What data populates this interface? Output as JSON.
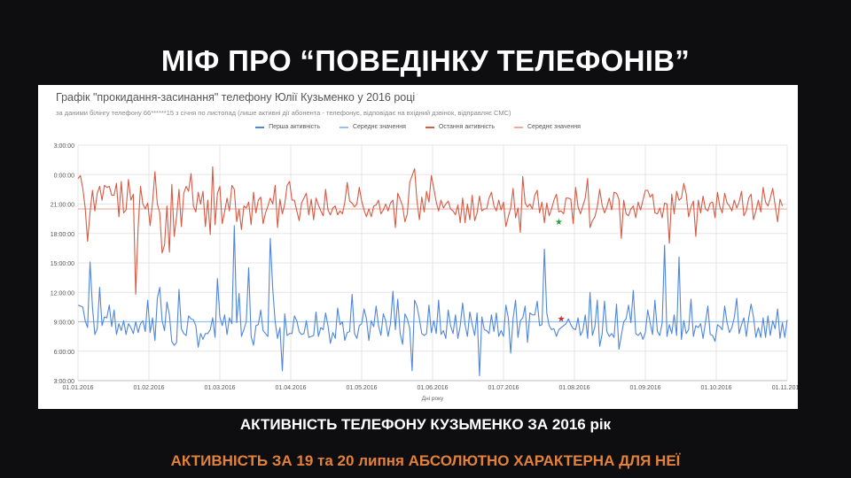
{
  "slide": {
    "title": "МІФ ПРО “ПОВЕДІНКУ ТЕЛЕФОНІВ”",
    "caption_1": "АКТИВНІСТЬ ТЕЛЕФОНУ КУЗЬМЕНКО ЗА 2016 рік",
    "caption_2": "АКТИВНІСТЬ ЗА  19 та 20 липня АБСОЛЮТНО ХАРАКТЕРНА ДЛЯ НЕЇ"
  },
  "colors": {
    "first_activity": "#4f86db",
    "first_average": "#9cc0ee",
    "last_activity": "#d65a44",
    "last_average": "#f0a99c",
    "caption_accent": "#e2813a",
    "marker_green": "#2e9e3e",
    "marker_red": "#c0392b"
  },
  "chart_data": {
    "type": "line",
    "title": "Графік \"прокидання-засинання\" телефону Юлії Кузьменко у 2016 році",
    "subtitle": "за даними білінгу телефону 66******15 з січня по листопад (лише активні дії абонента - телефонує, відповідає на вхідний дзвінок, відправляє СМС)",
    "xlabel": "Дні року",
    "ylabel": "",
    "x_ticks": [
      "01.01.2016",
      "01.02.2016",
      "01.03.2016",
      "01.04.2016",
      "01.05.2016",
      "01.06.2016",
      "01.07.2016",
      "01.08.2016",
      "01.09.2016",
      "01.10.2016",
      "01.11.2016"
    ],
    "y_ticks": [
      "3:00:00",
      "6:00:00",
      "9:00:00",
      "12:00:00",
      "15:00:00",
      "18:00:00",
      "21:00:00",
      "0:00:00",
      "3:00:00"
    ],
    "ylim_hours": [
      3,
      27
    ],
    "grid": true,
    "legend_position": "top",
    "series": [
      {
        "name": "Перша активність",
        "kind": "daily",
        "approx_values_hours": [
          10.7,
          10.6,
          10.5,
          9.1,
          8.4,
          15.1,
          10.5,
          7.7,
          8.3,
          12.5,
          8.6,
          9.5,
          9.4,
          10.7,
          8.5,
          10.2,
          7.7,
          8.8,
          8.1,
          9.1,
          7.7,
          8.8,
          8.4,
          7.8,
          9.0,
          7.9,
          8.8,
          9.1,
          8.0,
          11.2,
          7.9,
          9.4,
          7.1,
          11.4,
          12.5,
          9.1,
          8.1,
          11.0,
          9.7,
          7.0,
          6.6,
          6.9,
          12.3,
          8.3,
          7.8,
          7.6,
          9.6,
          9.3,
          9.2,
          8.6,
          6.4,
          7.8,
          7.2,
          7.8,
          7.8,
          8.2,
          9.4,
          7.4,
          13.4,
          9.5,
          8.6,
          9.7,
          7.7,
          9.4,
          8.8,
          18.8,
          8.9,
          11.9,
          7.5,
          8.2,
          9.0,
          14.5,
          7.5,
          6.6,
          8.6,
          8.7,
          10.2,
          8.1,
          7.8,
          7.5,
          17.5,
          12.3,
          9.0,
          7.3,
          8.4,
          4.0,
          9.8,
          7.6,
          7.8,
          7.8,
          9.6,
          9.1,
          8.0,
          7.7,
          7.8,
          9.1,
          7.4,
          7.5,
          7.6,
          10.0,
          7.5,
          8.4,
          8.2,
          9.9,
          8.6,
          6.8,
          7.9,
          7.3,
          10.4,
          8.7,
          9.0,
          7.1,
          7.9,
          8.0,
          11.8,
          7.8,
          7.3,
          8.6,
          8.8,
          10.3,
          9.3,
          7.1,
          9.1,
          8.5,
          10.6,
          8.6,
          7.6,
          9.8,
          9.1,
          7.5,
          8.8,
          12.1,
          8.2,
          11.3,
          7.8,
          6.7,
          9.8,
          9.3,
          8.3,
          4.0,
          11.2,
          10.6,
          9.3,
          7.8,
          7.6,
          7.8,
          10.7,
          7.9,
          9.1,
          7.8,
          11.2,
          7.7,
          8.1,
          7.3,
          10.2,
          8.6,
          7.8,
          9.7,
          7.3,
          8.6,
          10.9,
          8.7,
          7.5,
          10.0,
          8.7,
          7.6,
          9.9,
          3.5,
          9.5,
          8.2,
          8.1,
          7.8,
          9.7,
          8.0,
          9.9,
          7.5,
          8.1,
          7.5,
          10.7,
          9.4,
          5.8,
          9.3,
          11.2,
          7.4,
          9.1,
          9.4,
          10.6,
          6.9,
          9.9,
          9.7,
          9.7,
          11.1,
          8.6,
          8.7,
          16.4,
          9.9,
          8.6,
          8.2,
          8.3,
          7.5,
          8.2,
          8.4,
          8.6,
          8.8,
          9.3,
          8.7,
          8.3,
          8.2,
          9.4,
          7.6,
          8.1,
          9.7,
          7.3,
          12.0,
          7.6,
          8.5,
          11.2,
          6.5,
          7.7,
          11.1,
          8.0,
          7.5,
          7.8,
          7.4,
          10.8,
          6.2,
          7.6,
          9.0,
          9.3,
          10.7,
          8.9,
          12.2,
          7.8,
          7.6,
          7.9,
          7.2,
          7.9,
          10.2,
          8.9,
          7.7,
          11.2,
          8.0,
          7.6,
          8.9,
          16.8,
          7.5,
          8.7,
          7.8,
          9.7,
          7.6,
          15.6,
          7.2,
          9.1,
          7.8,
          8.2,
          11.3,
          7.5,
          8.6,
          8.4,
          8.8,
          7.3,
          8.9,
          10.6,
          7.7,
          7.6,
          7.0,
          8.7,
          8.5,
          8.2,
          10.6,
          8.9,
          7.9,
          8.4,
          9.4,
          11.4,
          7.8,
          8.7,
          9.4,
          7.5,
          9.4,
          10.8,
          9.5,
          7.4,
          8.4,
          7.4,
          9.4,
          7.4,
          9.6,
          7.6,
          9.1,
          8.3,
          10.3,
          7.3,
          8.9,
          7.4,
          9.2
        ]
      },
      {
        "name": "Середнє значення",
        "kind": "average_first",
        "approx_value_hours": 9.0
      },
      {
        "name": "Остання активність",
        "kind": "daily",
        "approx_values_hours": [
          23.6,
          23.9,
          22.6,
          20.6,
          17.2,
          20.2,
          22.4,
          20.3,
          22.1,
          22.8,
          21.4,
          22.9,
          22.7,
          22.8,
          21.9,
          21.9,
          23.1,
          19.7,
          23.3,
          20.1,
          20.4,
          23.5,
          21.4,
          22.0,
          11.8,
          18.5,
          22.8,
          21.0,
          20.5,
          21.1,
          18.8,
          21.2,
          24.3,
          21.0,
          20.1,
          16.0,
          16.8,
          20.8,
          16.1,
          23.0,
          17.7,
          19.7,
          22.5,
          18.7,
          22.1,
          22.8,
          22.3,
          24.1,
          20.8,
          20.2,
          22.2,
          21.0,
          22.3,
          18.7,
          21.4,
          17.9,
          24.8,
          18.9,
          22.1,
          22.8,
          19.0,
          20.2,
          21.6,
          20.3,
          22.9,
          22.5,
          19.2,
          20.5,
          18.4,
          20.8,
          20.6,
          21.2,
          18.9,
          22.2,
          20.1,
          21.4,
          21.7,
          19.0,
          20.1,
          20.8,
          21.6,
          21.0,
          22.9,
          18.6,
          21.5,
          20.0,
          21.0,
          22.9,
          23.3,
          21.4,
          21.4,
          20.3,
          19.3,
          21.1,
          21.6,
          22.1,
          19.9,
          21.5,
          19.4,
          21.6,
          20.9,
          20.3,
          19.8,
          22.5,
          20.4,
          19.9,
          20.6,
          20.8,
          19.9,
          20.3,
          20.0,
          21.2,
          23.2,
          21.3,
          21.1,
          20.7,
          21.0,
          22.7,
          21.3,
          20.4,
          19.7,
          20.5,
          19.7,
          20.8,
          20.9,
          21.4,
          20.0,
          20.4,
          21.0,
          20.3,
          21.1,
          21.4,
          18.6,
          22.1,
          21.5,
          20.8,
          19.2,
          20.0,
          23.2,
          23.9,
          24.6,
          21.3,
          19.4,
          21.7,
          20.2,
          22.3,
          21.2,
          23.9,
          22.6,
          21.2,
          20.3,
          21.4,
          20.6,
          21.0,
          21.3,
          20.5,
          20.3,
          19.9,
          20.9,
          19.1,
          21.6,
          19.1,
          21.0,
          19.4,
          21.9,
          19.3,
          20.1,
          21.8,
          20.3,
          20.5,
          20.5,
          21.6,
          22.2,
          20.8,
          20.3,
          21.4,
          20.4,
          21.2,
          18.7,
          19.7,
          20.6,
          22.6,
          19.6,
          20.6,
          18.1,
          23.8,
          21.1,
          20.7,
          21.0,
          20.5,
          21.9,
          22.4,
          20.1,
          21.2,
          19.1,
          21.1,
          19.8,
          20.5,
          21.4,
          22.0,
          20.2,
          20.3,
          20.0,
          21.6,
          21.6,
          21.5,
          19.0,
          22.7,
          20.7,
          20.0,
          20.8,
          21.6,
          23.6,
          18.6,
          19.3,
          19.7,
          20.7,
          22.5,
          20.9,
          20.1,
          20.7,
          21.6,
          20.4,
          22.2,
          22.1,
          21.5,
          17.5,
          21.4,
          20.0,
          19.8,
          20.5,
          20.8,
          19.6,
          21.2,
          20.4,
          21.4,
          22.4,
          22.4,
          21.7,
          22.0,
          20.1,
          20.0,
          20.6,
          19.6,
          21.1,
          21.0,
          17.0,
          22.0,
          20.0,
          22.3,
          21.4,
          21.6,
          23.1,
          22.0,
          19.7,
          20.7,
          21.3,
          17.7,
          21.4,
          20.1,
          21.8,
          20.5,
          20.3,
          21.1,
          21.2,
          19.6,
          22.2,
          20.7,
          20.1,
          22.1,
          21.1,
          20.8,
          20.3,
          21.4,
          20.6,
          21.2,
          22.3,
          19.8,
          20.3,
          21.6,
          22.0,
          19.4,
          20.3,
          21.4,
          20.2,
          22.7,
          21.2,
          20.8,
          21.6,
          22.6,
          20.9,
          19.2,
          21.5,
          20.8
        ]
      },
      {
        "name": "Середнє значення",
        "kind": "average_last",
        "approx_value_hours": 20.5
      }
    ],
    "markers": [
      {
        "label": "19.07.2016",
        "day_index": 200,
        "value_hours": 19.2,
        "symbol": "★",
        "color": "#2e9e3e"
      },
      {
        "label": "20.07.2016",
        "day_index": 201,
        "value_hours": 9.3,
        "symbol": "★",
        "color": "#c0392b"
      }
    ]
  }
}
